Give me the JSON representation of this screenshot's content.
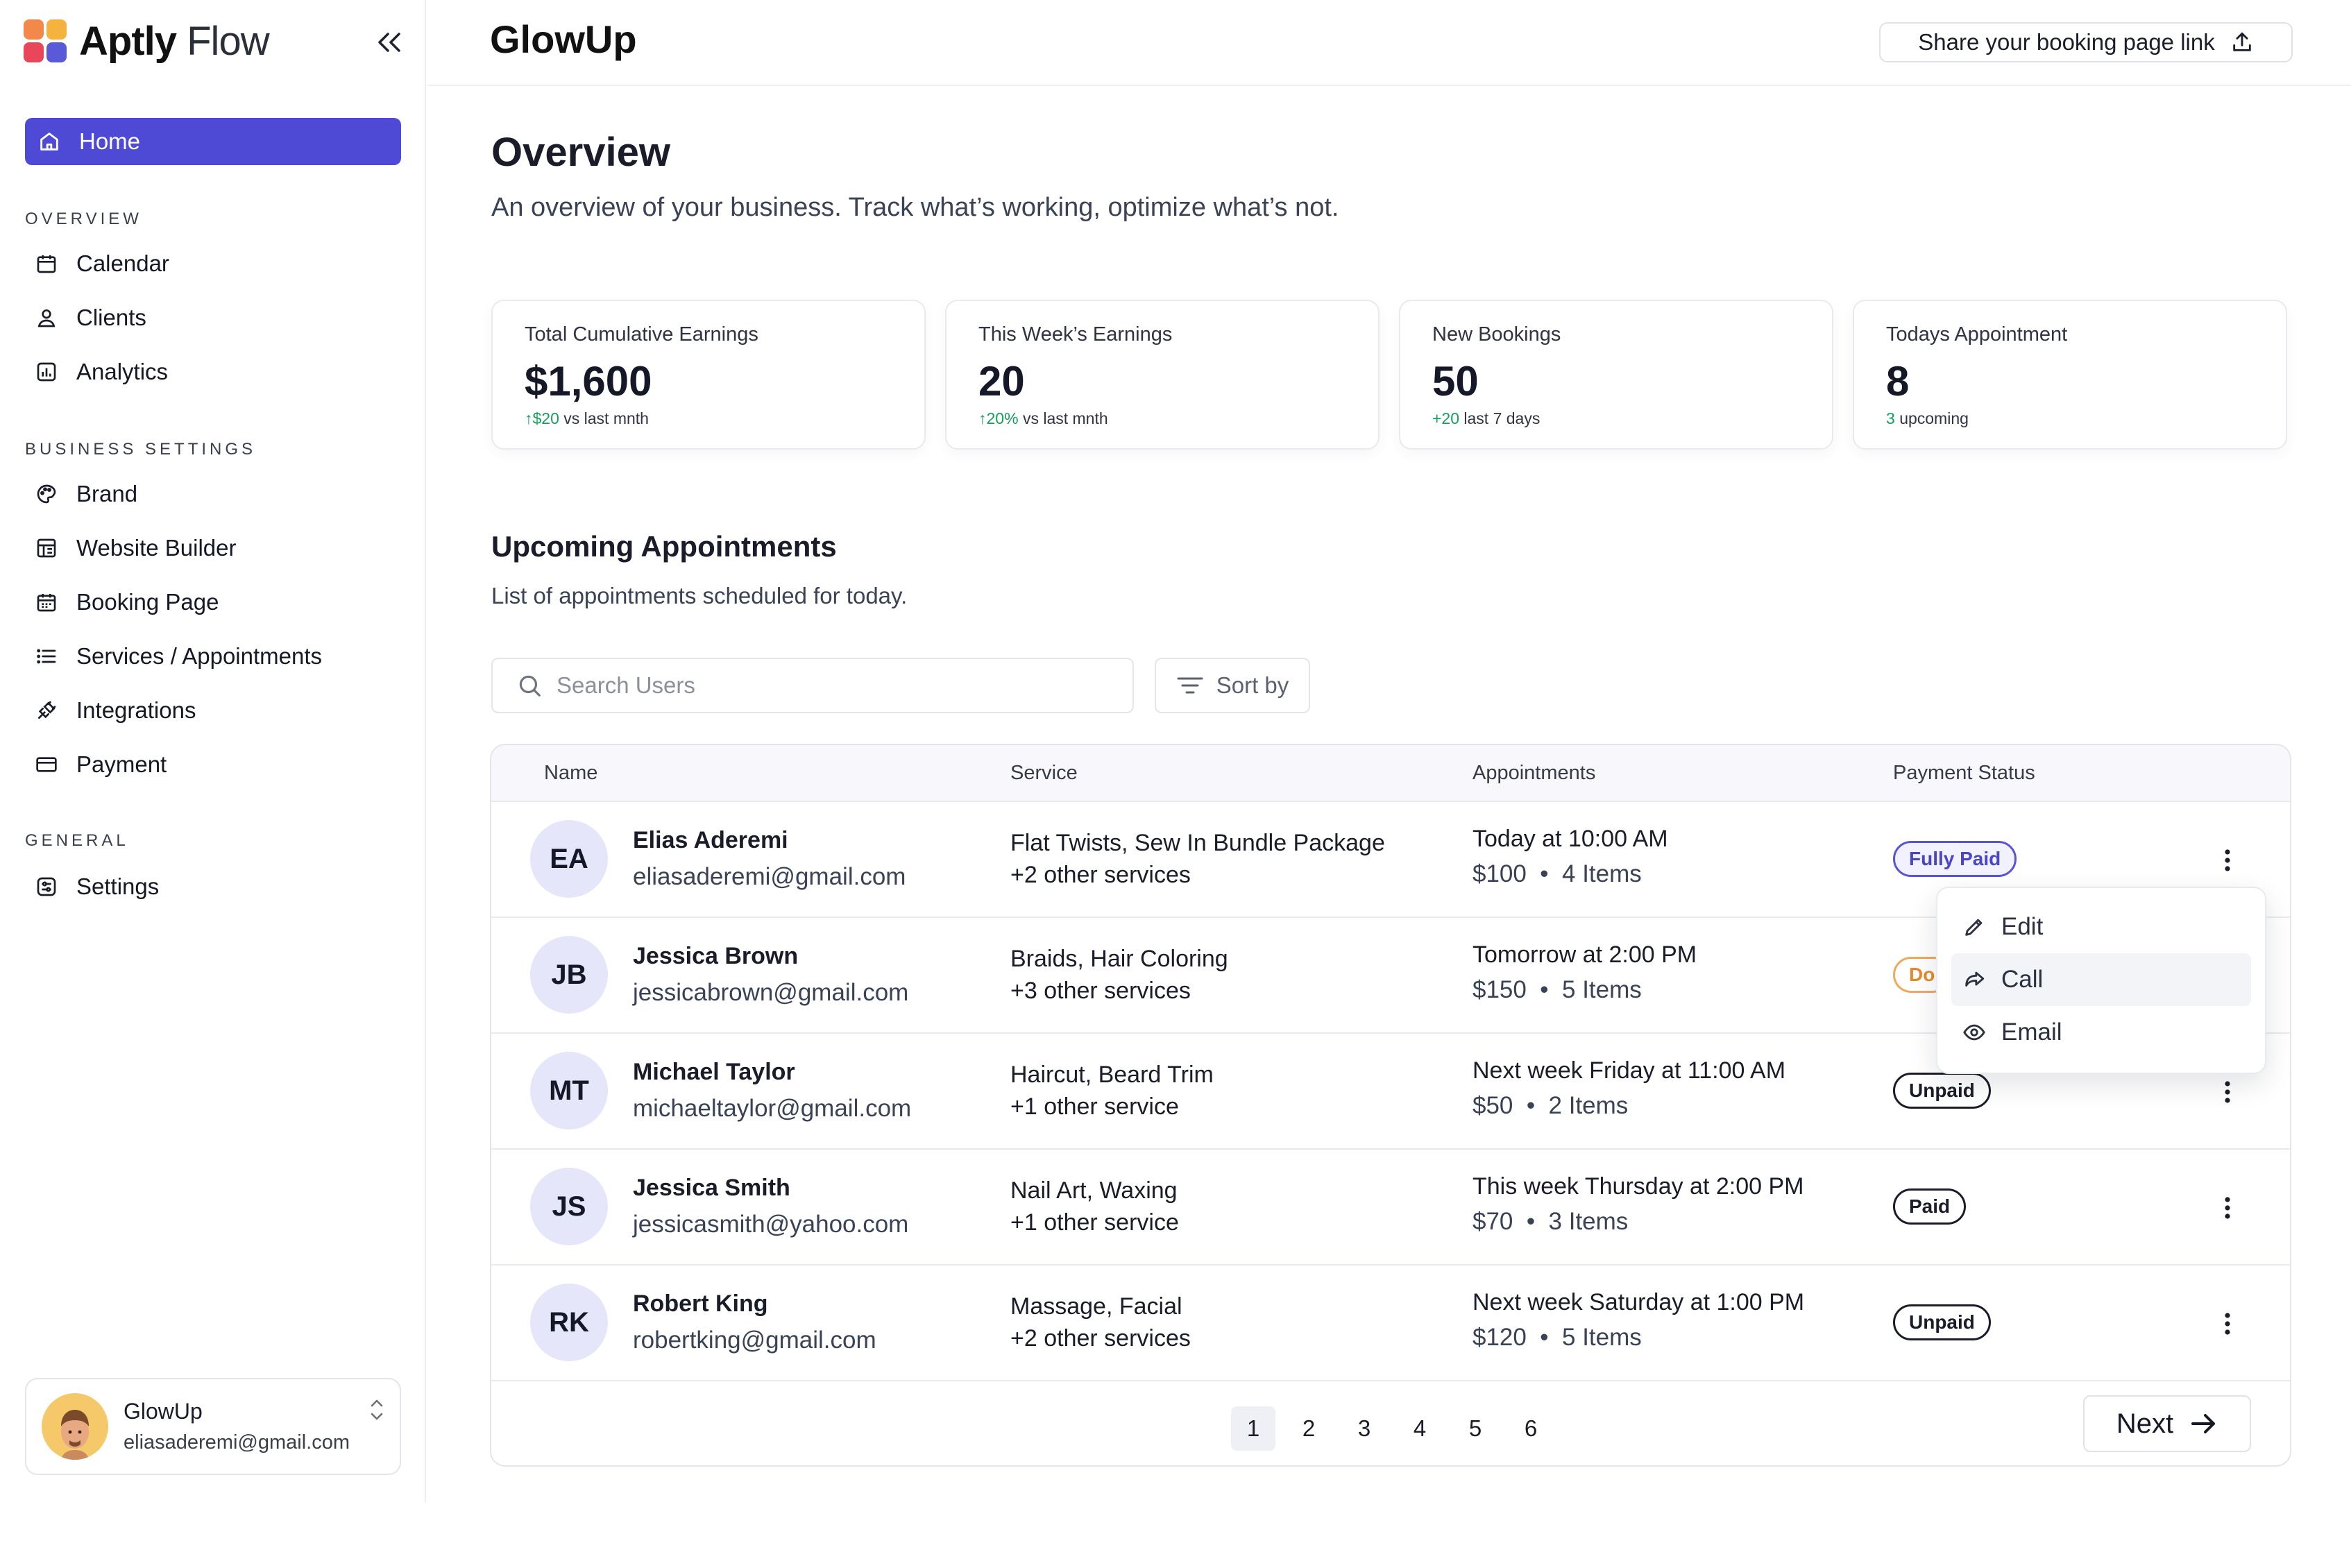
{
  "sidebar": {
    "brand_bold": "Aptly",
    "brand_light": "Flow",
    "home_label": "Home",
    "section_overview": "OVERVIEW",
    "overview_items": [
      "Calendar",
      "Clients",
      "Analytics"
    ],
    "section_business": "BUSINESS SETTINGS",
    "business_items": [
      "Brand",
      "Website Builder",
      "Booking Page",
      "Services / Appointments",
      "Integrations",
      "Payment"
    ],
    "section_general": "GENERAL",
    "general_items": [
      "Settings"
    ],
    "account": {
      "name": "GlowUp",
      "email": "eliasaderemi@gmail.com"
    }
  },
  "header": {
    "title": "GlowUp",
    "share_label": "Share your booking page link"
  },
  "overview": {
    "title": "Overview",
    "subtitle": "An overview of your business. Track what’s working, optimize what’s not."
  },
  "stats": [
    {
      "label": "Total Cumulative Earnings",
      "value": "$1,600",
      "delta_arrow": "↑",
      "delta": "$20",
      "delta_text": "vs last mnth"
    },
    {
      "label": "This Week’s Earnings",
      "value": "20",
      "delta_arrow": "↑",
      "delta": "20%",
      "delta_text": "vs last mnth"
    },
    {
      "label": "New Bookings",
      "value": "50",
      "delta_arrow": "",
      "delta": "+20",
      "delta_text": "last 7 days"
    },
    {
      "label": "Todays Appointment",
      "value": "8",
      "delta_arrow": "",
      "delta": "3",
      "delta_text": "upcoming"
    }
  ],
  "upcoming": {
    "title": "Upcoming Appointments",
    "subtitle": "List of appointments scheduled for today.",
    "search_placeholder": "Search Users",
    "sort_label": "Sort by"
  },
  "table": {
    "columns": [
      "Name",
      "Service",
      "Appointments",
      "Payment Status"
    ],
    "rows": [
      {
        "initials": "EA",
        "name": "Elias Aderemi",
        "email": "eliasaderemi@gmail.com",
        "service": "Flat Twists, Sew In Bundle Package",
        "service_more": "+2 other services",
        "when": "Today at 10:00 AM",
        "price": "$100  •  4 Items",
        "status": "Fully Paid"
      },
      {
        "initials": "JB",
        "name": "Jessica Brown",
        "email": "jessicabrown@gmail.com",
        "service": "Braids, Hair Coloring",
        "service_more": "+3 other services",
        "when": "Tomorrow at 2:00 PM",
        "price": "$150  •  5 Items",
        "status": "Do"
      },
      {
        "initials": "MT",
        "name": "Michael Taylor",
        "email": "michaeltaylor@gmail.com",
        "service": "Haircut, Beard Trim",
        "service_more": "+1 other service",
        "when": "Next week Friday at 11:00 AM",
        "price": "$50  •  2 Items",
        "status": "Unpaid"
      },
      {
        "initials": "JS",
        "name": "Jessica Smith",
        "email": "jessicasmith@yahoo.com",
        "service": "Nail Art, Waxing",
        "service_more": "+1 other service",
        "when": "This week Thursday at 2:00 PM",
        "price": "$70  •  3 Items",
        "status": "Paid"
      },
      {
        "initials": "RK",
        "name": "Robert King",
        "email": "robertking@gmail.com",
        "service": "Massage, Facial",
        "service_more": "+2 other services",
        "when": "Next week Saturday at 1:00 PM",
        "price": "$120  •  5 Items",
        "status": "Unpaid"
      }
    ]
  },
  "pagination": {
    "pages": [
      "1",
      "2",
      "3",
      "4",
      "5",
      "6"
    ],
    "current": "1",
    "next_label": "Next"
  },
  "context_menu": {
    "items": [
      "Edit",
      "Call",
      "Email"
    ]
  },
  "colors": {
    "accent": "#4f4ad6",
    "positive": "#15a05a",
    "badge_fully_paid": "#5954d6",
    "badge_pending": "#f0a85c"
  },
  "icons": [
    "home-icon",
    "calendar-icon",
    "user-icon",
    "analytics-icon",
    "palette-icon",
    "layout-icon",
    "calendar-grid-icon",
    "list-icon",
    "plug-icon",
    "card-icon",
    "settings-icon",
    "upload-icon",
    "search-icon",
    "filter-icon",
    "kebab-icon",
    "pencil-icon",
    "share-arrow-icon",
    "eye-icon",
    "arrow-right-icon",
    "chevron-updown-icon",
    "double-chevron-left-icon"
  ]
}
